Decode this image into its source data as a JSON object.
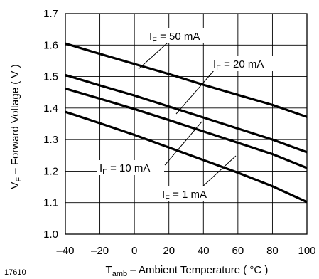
{
  "figure_id": "17610",
  "chart_data": {
    "type": "line",
    "title": "",
    "xlabel": {
      "main": "T",
      "sub": "amb",
      "rest": " – Ambient Temperature ( °C )"
    },
    "ylabel": {
      "main": "V",
      "sub": "F",
      "rest": " – Forward Voltage ( V )"
    },
    "xlim": [
      -40,
      100
    ],
    "ylim": [
      1.0,
      1.7
    ],
    "grid": true,
    "x_ticks": [
      -40,
      -20,
      0,
      20,
      40,
      60,
      80,
      100
    ],
    "x_tick_labels": [
      "–40",
      "–20",
      "0",
      "20",
      "40",
      "60",
      "80",
      "100"
    ],
    "y_ticks": [
      1.0,
      1.1,
      1.2,
      1.3,
      1.4,
      1.5,
      1.6,
      1.7
    ],
    "y_tick_labels": [
      "1.0",
      "1.1",
      "1.2",
      "1.3",
      "1.4",
      "1.5",
      "1.6",
      "1.7"
    ],
    "series": [
      {
        "label_prefix": "I",
        "label_sub": "F",
        "label_rest": " = 50 mA",
        "x": [
          -40,
          -20,
          0,
          20,
          40,
          60,
          80,
          100
        ],
        "y": [
          1.605,
          1.572,
          1.54,
          1.508,
          1.474,
          1.442,
          1.41,
          1.372
        ]
      },
      {
        "label_prefix": "I",
        "label_sub": "F",
        "label_rest": " = 20 mA",
        "x": [
          -40,
          -20,
          0,
          20,
          40,
          60,
          80,
          100
        ],
        "y": [
          1.505,
          1.472,
          1.44,
          1.405,
          1.37,
          1.335,
          1.3,
          1.26
        ]
      },
      {
        "label_prefix": "I",
        "label_sub": "F",
        "label_rest": " = 10 mA",
        "x": [
          -40,
          -20,
          0,
          20,
          40,
          60,
          80,
          100
        ],
        "y": [
          1.462,
          1.43,
          1.397,
          1.362,
          1.326,
          1.29,
          1.254,
          1.21
        ]
      },
      {
        "label_prefix": "I",
        "label_sub": "F",
        "label_rest": " = 1 mA",
        "x": [
          -40,
          -20,
          0,
          20,
          40,
          60,
          80,
          100
        ],
        "y": [
          1.388,
          1.352,
          1.315,
          1.275,
          1.235,
          1.195,
          1.152,
          1.102
        ]
      }
    ]
  }
}
